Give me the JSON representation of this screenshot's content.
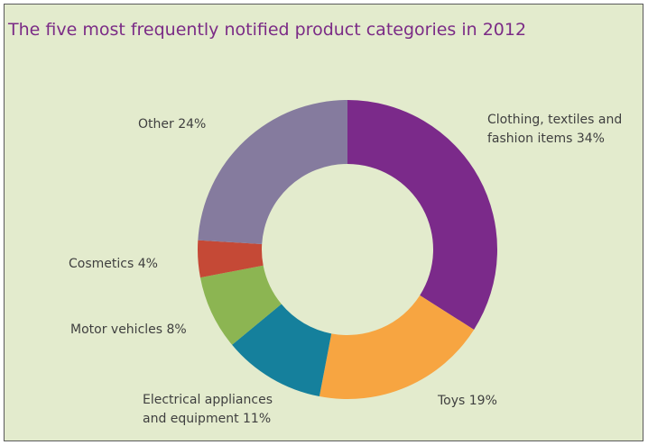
{
  "chart_data": {
    "type": "pie",
    "title": "The five most frequently notified product categories in 2012",
    "donut": true,
    "slices": [
      {
        "label_lines": [
          "Clothing, textiles and",
          "fashion items 34%"
        ],
        "value": 34,
        "color": "#7b2a8a"
      },
      {
        "label_lines": [
          "Toys 19%"
        ],
        "value": 19,
        "color": "#f7a541"
      },
      {
        "label_lines": [
          "Electrical appliances",
          "and equipment 11%"
        ],
        "value": 11,
        "color": "#15809c"
      },
      {
        "label_lines": [
          "Motor vehicles 8%"
        ],
        "value": 8,
        "color": "#8cb552"
      },
      {
        "label_lines": [
          "Cosmetics 4%"
        ],
        "value": 4,
        "color": "#c54936"
      },
      {
        "label_lines": [
          "Other 24%"
        ],
        "value": 24,
        "color": "#857b9e"
      }
    ]
  }
}
